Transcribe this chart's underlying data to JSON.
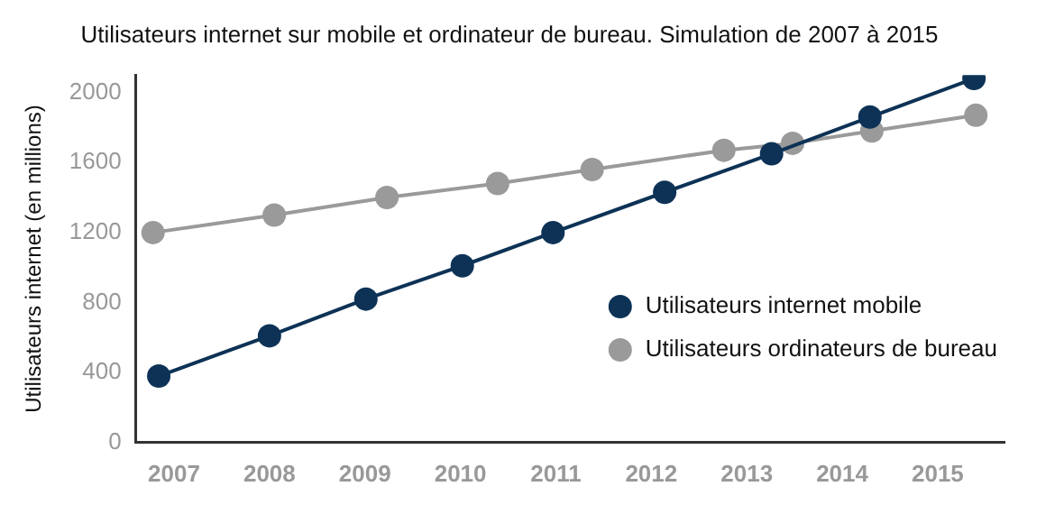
{
  "chart_data": {
    "type": "line",
    "title": "Utilisateurs internet sur mobile et ordinateur de bureau. Simulation de 2007 à 2015",
    "ylabel": "Utilisateurs internet (en millions)",
    "xlim": [
      2006.6,
      2015.7
    ],
    "xticks": [
      2007,
      2008,
      2009,
      2010,
      2011,
      2012,
      2013,
      2014,
      2015
    ],
    "ylim": [
      0,
      2100
    ],
    "yticks": [
      0,
      400,
      800,
      1200,
      1600,
      2000
    ],
    "series": [
      {
        "name": "Utilisateurs internet mobile",
        "color": "#0d3256",
        "x": [
          2006.84,
          2008.0,
          2009.01,
          2010.02,
          2010.97,
          2012.14,
          2013.26,
          2014.29,
          2015.38
        ],
        "values": [
          380,
          610,
          820,
          1010,
          1200,
          1430,
          1650,
          1860,
          2080
        ]
      },
      {
        "name": "Utilisateurs ordinateurs de bureau",
        "color": "#9a9a9a",
        "x": [
          2006.78,
          2008.05,
          2009.23,
          2010.39,
          2011.38,
          2012.76,
          2013.48,
          2014.31,
          2015.4
        ],
        "values": [
          1200,
          1300,
          1400,
          1480,
          1560,
          1670,
          1710,
          1780,
          1870
        ]
      }
    ],
    "marker": "circle",
    "line_style": "solid",
    "grid": false,
    "legend": "right"
  }
}
